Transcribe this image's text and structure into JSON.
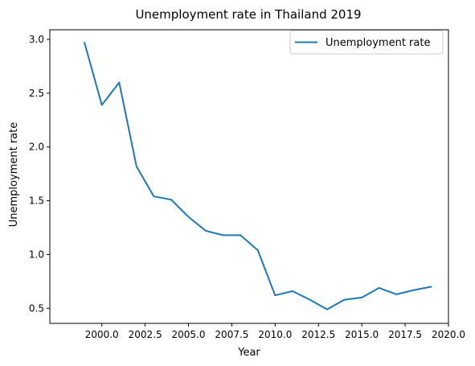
{
  "chart_data": {
    "type": "line",
    "title": "Unemployment rate in Thailand 2019",
    "xlabel": "Year",
    "ylabel": "Unemployment rate",
    "xlim": [
      1997.0,
      2020.0
    ],
    "ylim": [
      0.36,
      3.09
    ],
    "xticks": [
      2000.0,
      2002.5,
      2005.0,
      2007.5,
      2010.0,
      2012.5,
      2015.0,
      2017.5,
      2020.0
    ],
    "xtick_labels": [
      "2000.0",
      "2002.5",
      "2005.0",
      "2007.5",
      "2010.0",
      "2012.5",
      "2015.0",
      "2017.5",
      "2020.0"
    ],
    "yticks": [
      0.5,
      1.0,
      1.5,
      2.0,
      2.5,
      3.0
    ],
    "ytick_labels": [
      "0.5",
      "1.0",
      "1.5",
      "2.0",
      "2.5",
      "3.0"
    ],
    "grid": false,
    "legend_position": "upper right",
    "series": [
      {
        "name": "Unemployment rate",
        "color": "#1f77b4",
        "x": [
          1999,
          2000,
          2001,
          2002,
          2003,
          2004,
          2005,
          2006,
          2007,
          2008,
          2009,
          2010,
          2011,
          2012,
          2013,
          2014,
          2015,
          2016,
          2017,
          2018,
          2019
        ],
        "y": [
          2.97,
          2.39,
          2.6,
          1.82,
          1.54,
          1.51,
          1.35,
          1.22,
          1.18,
          1.18,
          1.04,
          0.62,
          0.66,
          0.58,
          0.49,
          0.58,
          0.6,
          0.69,
          0.63,
          0.67,
          0.7
        ]
      }
    ]
  }
}
